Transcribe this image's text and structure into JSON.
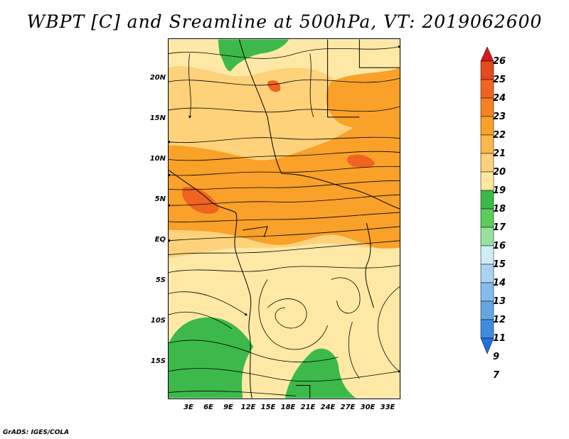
{
  "title": "WBPT [C] and Sreamline at 500hPa, VT: 2019062600",
  "footer": "GrADS: IGES/COLA",
  "map": {
    "lat_labels": [
      "20N",
      "15N",
      "10N",
      "5N",
      "EQ",
      "5S",
      "10S",
      "15S"
    ],
    "lon_labels": [
      "3E",
      "6E",
      "9E",
      "12E",
      "15E",
      "18E",
      "21E",
      "24E",
      "27E",
      "30E",
      "33E"
    ],
    "lat_range": [
      -20,
      24
    ],
    "lon_range": [
      0,
      35
    ]
  },
  "colorbar": {
    "labels": [
      "26",
      "25",
      "24",
      "23",
      "22",
      "21",
      "20",
      "19",
      "18",
      "17",
      "16",
      "15",
      "14",
      "13",
      "12",
      "11",
      "9",
      "7"
    ],
    "colors": [
      "#d7191c",
      "#e34a1e",
      "#f0641f",
      "#f5821f",
      "#f9a128",
      "#fbb84a",
      "#fdd27a",
      "#fee89f",
      "#3cb94a",
      "#5ccc5c",
      "#99e0a0",
      "#cfeef3",
      "#a8d4f2",
      "#86bcec",
      "#65a5e4",
      "#3f8be0",
      "#1f6fdc"
    ]
  },
  "field_colors": {
    "green": "#3cb94a",
    "pale": "#fde9a5",
    "light_orange": "#fdd27a",
    "orange": "#f9a128",
    "dark_orange": "#f0641f",
    "red": "#d7191c"
  }
}
